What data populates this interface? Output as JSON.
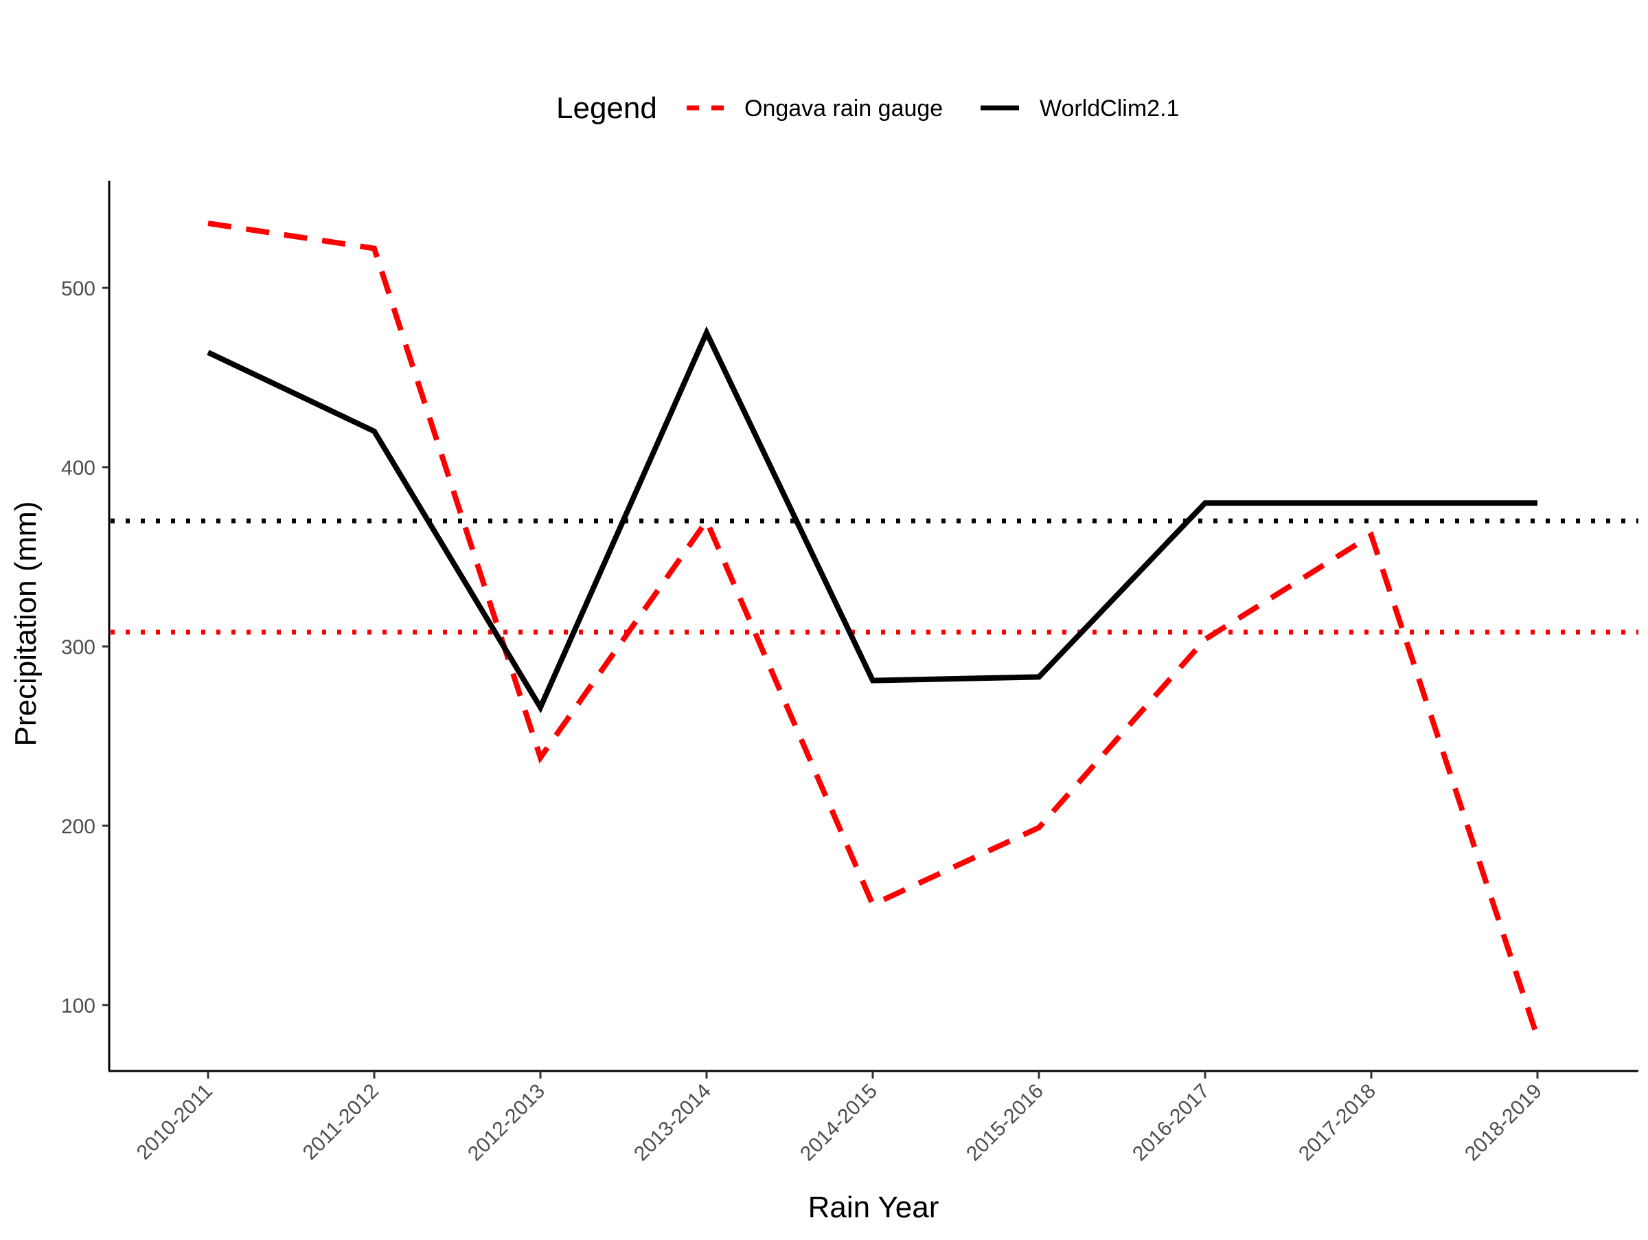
{
  "chart_data": {
    "type": "line",
    "xlabel": "Rain Year",
    "ylabel": "Precipitation (mm)",
    "ylim": [
      63,
      558
    ],
    "yticks": [
      100,
      200,
      300,
      400,
      500
    ],
    "categories": [
      "2010-2011",
      "2011-2012",
      "2012-2013",
      "2013-2014",
      "2014-2015",
      "2015-2016",
      "2016-2017",
      "2017-2018",
      "2018-2019"
    ],
    "legend": {
      "title": "Legend",
      "position": "top"
    },
    "series": [
      {
        "name": "Ongava rain gauge",
        "color": "#ff0000",
        "linestyle": "dashed",
        "values": [
          536,
          522,
          238,
          370,
          156,
          199,
          304,
          362,
          82
        ]
      },
      {
        "name": "WorldClim2.1",
        "color": "#000000",
        "linestyle": "solid",
        "values": [
          464,
          420,
          266,
          475,
          281,
          283,
          380,
          380,
          380
        ]
      }
    ],
    "reference_lines": [
      {
        "series": "WorldClim2.1",
        "y": 370,
        "color": "#000000",
        "linestyle": "dotted"
      },
      {
        "series": "Ongava rain gauge",
        "y": 308,
        "color": "#ff0000",
        "linestyle": "dotted"
      }
    ],
    "grid": false
  }
}
